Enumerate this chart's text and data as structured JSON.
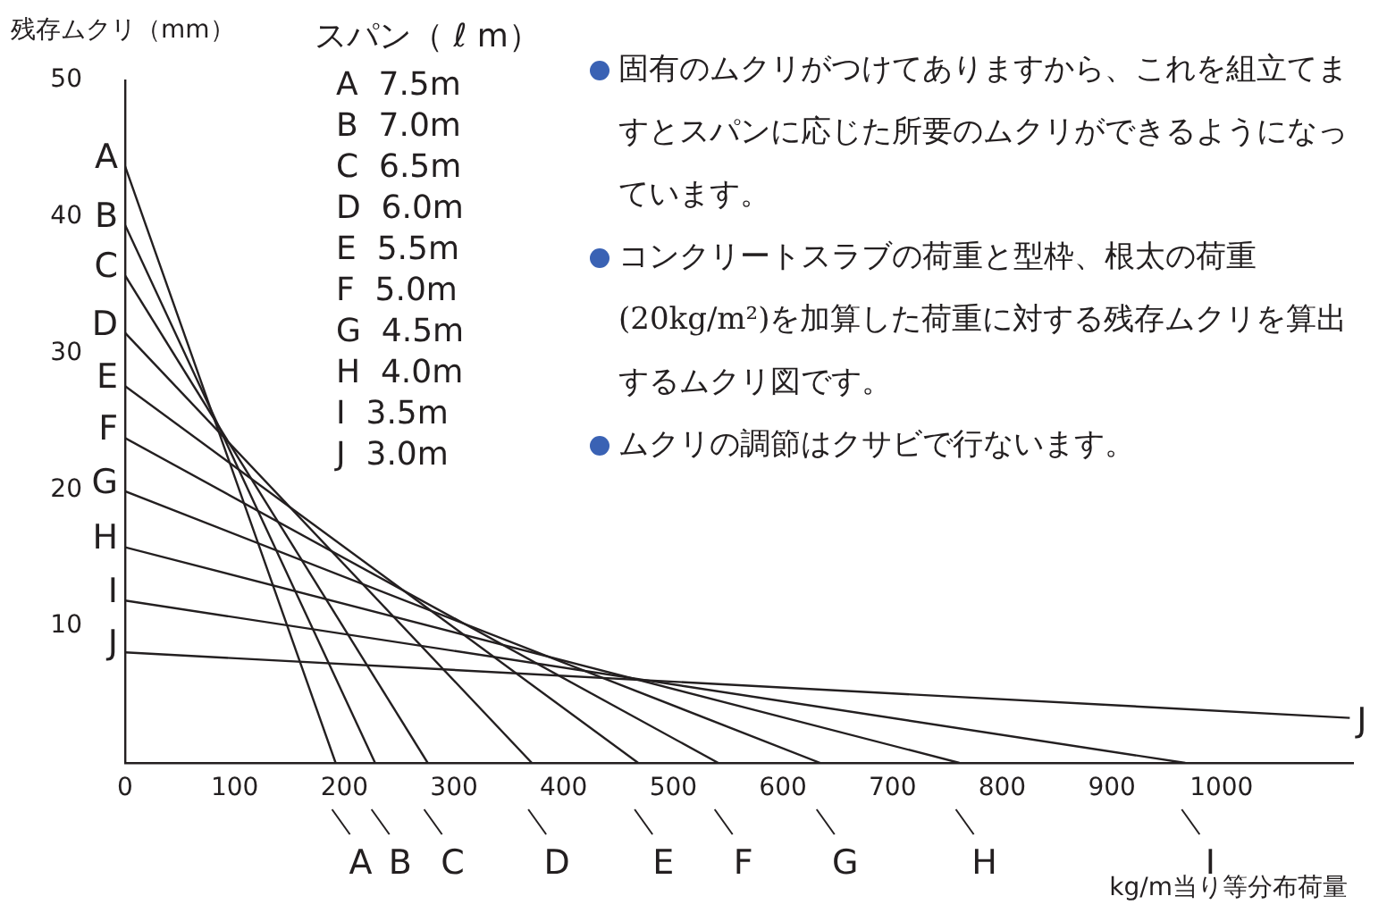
{
  "chart_data": {
    "type": "line",
    "xlabel": "kg/m当り等分布荷量",
    "ylabel": "残存ムクリ（mm）",
    "legend_title": "スパン（ ℓ m）",
    "xlim": [
      0,
      1120
    ],
    "xticks": [
      0,
      100,
      200,
      300,
      400,
      500,
      600,
      700,
      800,
      900,
      1000
    ],
    "ylim": [
      0,
      50
    ],
    "yticks": [
      10,
      20,
      30,
      40,
      50
    ],
    "grid": false,
    "legend": "bottom",
    "marker": "none",
    "line_style": "solid",
    "series": [
      {
        "name": "A",
        "color": "#231f20",
        "x": [
          0,
          192
        ],
        "values": [
          43.7,
          0
        ]
      },
      {
        "name": "B",
        "color": "#231f20",
        "x": [
          0,
          228
        ],
        "values": [
          39.4,
          0
        ]
      },
      {
        "name": "C",
        "color": "#231f20",
        "x": [
          0,
          276
        ],
        "values": [
          35.7,
          0
        ]
      },
      {
        "name": "D",
        "color": "#231f20",
        "x": [
          0,
          371
        ],
        "values": [
          31.5,
          0
        ]
      },
      {
        "name": "E",
        "color": "#231f20",
        "x": [
          0,
          468
        ],
        "values": [
          27.6,
          0
        ]
      },
      {
        "name": "F",
        "color": "#231f20",
        "x": [
          0,
          541
        ],
        "values": [
          23.8,
          0
        ]
      },
      {
        "name": "G",
        "color": "#231f20",
        "x": [
          0,
          634
        ],
        "values": [
          19.9,
          0
        ]
      },
      {
        "name": "H",
        "color": "#231f20",
        "x": [
          0,
          761
        ],
        "values": [
          15.8,
          0
        ]
      },
      {
        "name": "I",
        "color": "#231f20",
        "x": [
          0,
          967
        ],
        "values": [
          11.9,
          0
        ]
      },
      {
        "name": "J",
        "color": "#231f20",
        "x": [
          0,
          1117
        ],
        "values": [
          8.1,
          3.3
        ]
      }
    ],
    "annotations": [
      "A  7.5m",
      "B  7.0m",
      "C  6.5m",
      "D  6.0m",
      "E  5.5m",
      "F  5.0m",
      "G  4.5m",
      "H  4.0m",
      "I  3.5m",
      "J  3.0m",
      "固有のムクリがつけてありますから、これを組立てますとスパンに応じた所要のムクリができるようになっています。",
      "コンクリートスラブの荷重と型枠、根太の荷重(20kg/m²)を加算した荷重に対する残存ムクリを算出するムクリ図です。",
      "ムクリの調節はクサビで行ないます。"
    ]
  }
}
